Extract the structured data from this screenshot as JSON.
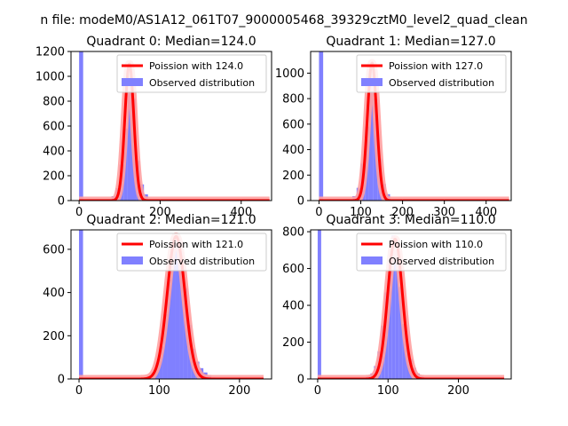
{
  "suptitle": "n file: modeM0/AS1A12_061T07_9000005468_39329cztM0_level2_quad_clean",
  "colors": {
    "bar": "#8080ff",
    "poisson": "#ff0000",
    "poisson_glow": "#ffa0a0",
    "axis": "#000000"
  },
  "chart_data": [
    {
      "type": "bar",
      "title": "Quadrant 0: Median=124.0",
      "median": 124.0,
      "xlim": [
        -20,
        475
      ],
      "ylim": [
        0,
        1200
      ],
      "xticks": [
        0,
        200,
        400
      ],
      "yticks": [
        0,
        200,
        400,
        600,
        800,
        1000,
        1200
      ],
      "bin_width": 10,
      "legend": {
        "position": "top-right",
        "entries": [
          "Poission with 124.0",
          "Observed distribution"
        ]
      },
      "series": [
        {
          "name": "Observed distribution",
          "kind": "histogram",
          "x": [
            0,
            70,
            80,
            90,
            100,
            110,
            120,
            130,
            140,
            150,
            160,
            170
          ],
          "values": [
            1200,
            10,
            35,
            100,
            290,
            580,
            1030,
            820,
            320,
            130,
            50,
            10
          ]
        },
        {
          "name": "Poission with 124.0",
          "kind": "poisson",
          "lambda": 124.0,
          "peak": 1100,
          "x_range": [
            0,
            470
          ]
        }
      ]
    },
    {
      "type": "bar",
      "title": "Quadrant 1: Median=127.0",
      "median": 127.0,
      "xlim": [
        -20,
        460
      ],
      "ylim": [
        0,
        1170
      ],
      "xticks": [
        0,
        100,
        200,
        300,
        400
      ],
      "yticks": [
        0,
        200,
        400,
        600,
        800,
        1000
      ],
      "bin_width": 10,
      "legend": {
        "position": "top-right",
        "entries": [
          "Poission with 127.0",
          "Observed distribution"
        ]
      },
      "series": [
        {
          "name": "Observed distribution",
          "kind": "histogram",
          "x": [
            0,
            70,
            80,
            90,
            100,
            110,
            120,
            130,
            140,
            150,
            160,
            170
          ],
          "values": [
            1170,
            10,
            35,
            100,
            290,
            580,
            1010,
            800,
            330,
            130,
            50,
            10
          ]
        },
        {
          "name": "Poission with 127.0",
          "kind": "poisson",
          "lambda": 127.0,
          "peak": 1080,
          "x_range": [
            0,
            455
          ]
        }
      ]
    },
    {
      "type": "bar",
      "title": "Quadrant 2: Median=121.0",
      "median": 121.0,
      "xlim": [
        -10,
        240
      ],
      "ylim": [
        0,
        690
      ],
      "xticks": [
        0,
        100,
        200
      ],
      "yticks": [
        0,
        200,
        400,
        600
      ],
      "bin_width": 5,
      "legend": {
        "position": "top-right",
        "entries": [
          "Poission with 121.0",
          "Observed distribution"
        ]
      },
      "series": [
        {
          "name": "Observed distribution",
          "kind": "histogram",
          "x": [
            0,
            80,
            85,
            90,
            95,
            100,
            105,
            110,
            115,
            120,
            125,
            130,
            135,
            140,
            145,
            150,
            155,
            160,
            165
          ],
          "values": [
            690,
            5,
            15,
            30,
            75,
            150,
            300,
            460,
            640,
            660,
            590,
            420,
            250,
            140,
            80,
            50,
            30,
            15,
            8
          ]
        },
        {
          "name": "Poission with 121.0",
          "kind": "poisson",
          "lambda": 121.0,
          "peak": 660,
          "x_range": [
            0,
            230
          ]
        }
      ]
    },
    {
      "type": "bar",
      "title": "Quadrant 3: Median=110.0",
      "median": 110.0,
      "xlim": [
        -10,
        275
      ],
      "ylim": [
        0,
        810
      ],
      "xticks": [
        0,
        100,
        200
      ],
      "yticks": [
        0,
        200,
        400,
        600,
        800
      ],
      "bin_width": 5,
      "legend": {
        "position": "top-right",
        "entries": [
          "Poission with 110.0",
          "Observed distribution"
        ]
      },
      "series": [
        {
          "name": "Observed distribution",
          "kind": "histogram",
          "x": [
            0,
            65,
            70,
            75,
            80,
            85,
            90,
            95,
            100,
            105,
            110,
            115,
            120,
            125,
            130,
            135,
            140,
            145,
            150,
            155
          ],
          "values": [
            810,
            5,
            15,
            30,
            70,
            150,
            290,
            470,
            640,
            780,
            700,
            500,
            300,
            190,
            110,
            60,
            30,
            15,
            8,
            3
          ]
        },
        {
          "name": "Poission with 110.0",
          "kind": "poisson",
          "lambda": 110.0,
          "peak": 760,
          "x_range": [
            0,
            265
          ]
        }
      ]
    }
  ]
}
